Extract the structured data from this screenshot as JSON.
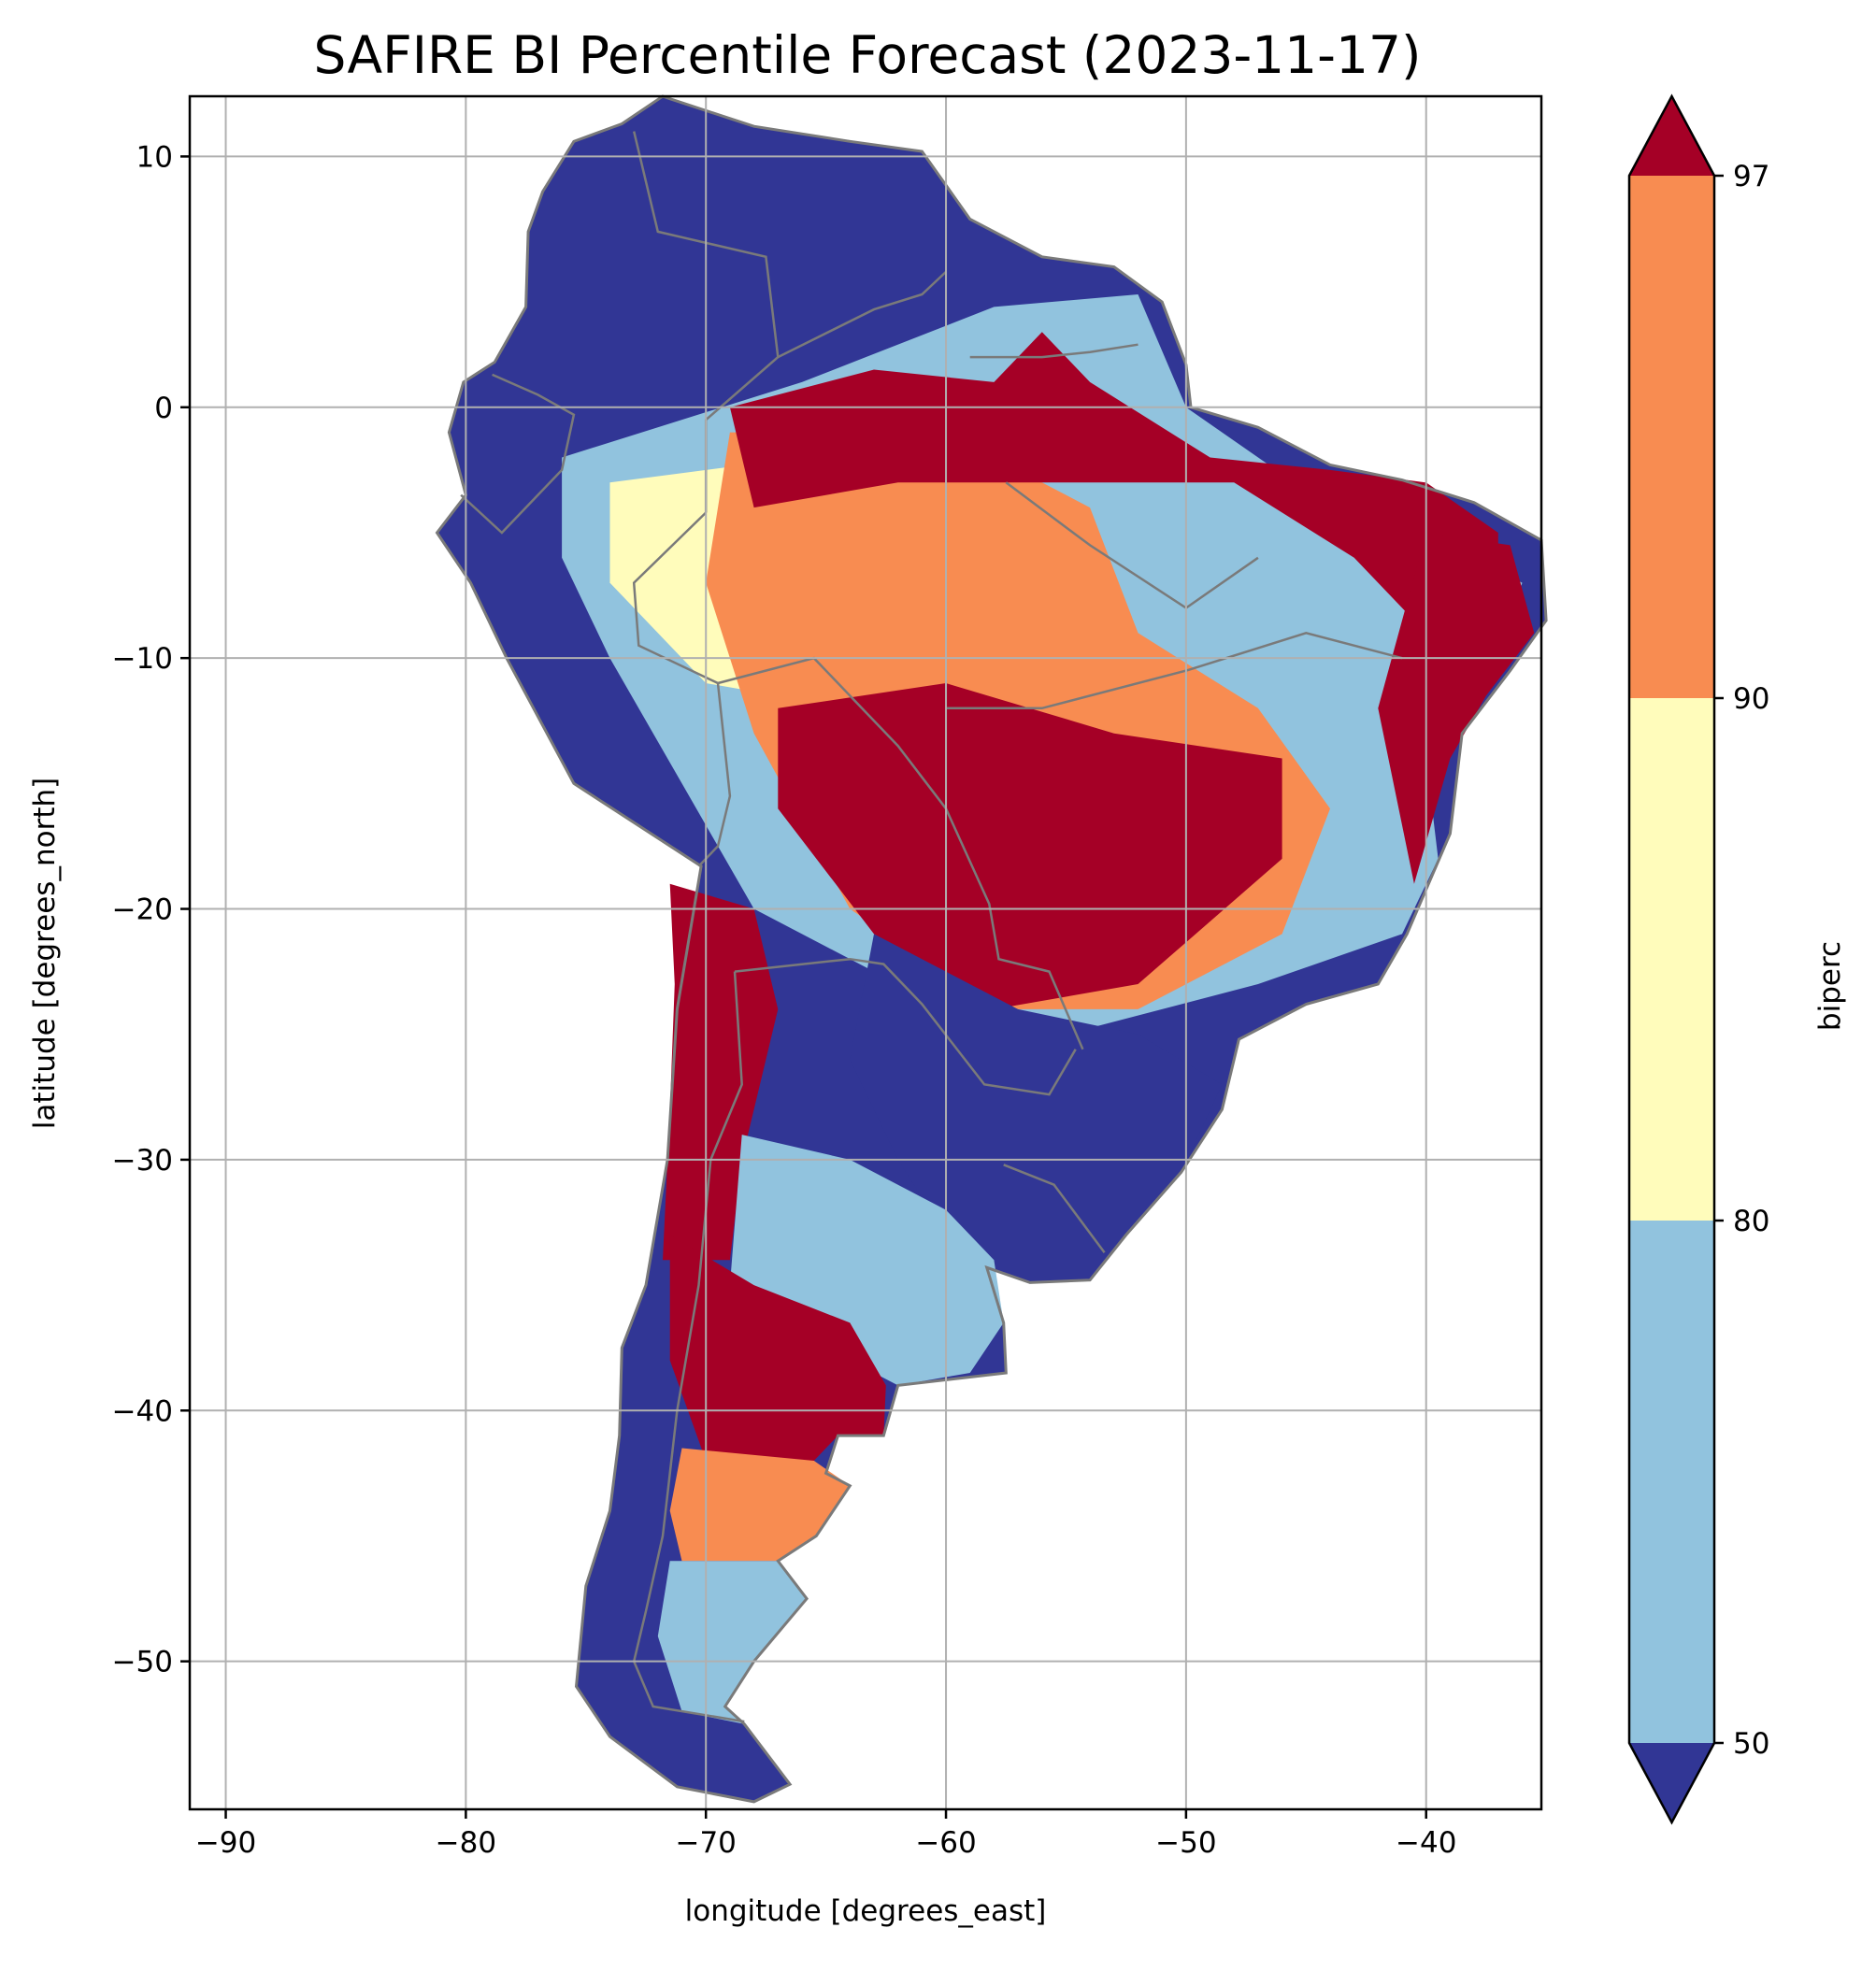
{
  "chart_data": {
    "type": "heatmap",
    "title": "SAFIRE BI Percentile Forecast (2023-11-17)",
    "xlabel": "longitude [degrees_east]",
    "ylabel": "latitude [degrees_north]",
    "xlim": [
      -91.5,
      -35.2
    ],
    "ylim": [
      -55.9,
      12.4
    ],
    "x_ticks": [
      -90,
      -80,
      -70,
      -60,
      -50,
      -40
    ],
    "y_ticks": [
      10,
      0,
      -10,
      -20,
      -30,
      -40,
      -50
    ],
    "x_tick_labels": [
      "−90",
      "−80",
      "−70",
      "−60",
      "−50",
      "−40"
    ],
    "y_tick_labels": [
      "10",
      "0",
      "−10",
      "−20",
      "−30",
      "−40",
      "−50"
    ],
    "grid": true,
    "region": "South America",
    "colorbar": {
      "label": "biperc",
      "levels": [
        50,
        80,
        90,
        97
      ],
      "tick_labels": [
        "50",
        "80",
        "90",
        "97"
      ],
      "extend": "both",
      "colors": {
        "under": "#313695",
        "50-80": "#91c3de",
        "80-90": "#fffcbb",
        "90-97": "#f88c51",
        "over": "#a50026"
      }
    },
    "regions": [
      {
        "area": "northwestern South America (Colombia, Venezuela, Ecuador, Peru)",
        "class": "under"
      },
      {
        "area": "central-western Amazon",
        "class": "50-80"
      },
      {
        "area": "northern Brazil / Guianas",
        "class": "over"
      },
      {
        "area": "central Brazil and Bolivia",
        "class": "over"
      },
      {
        "area": "southern Brazil, Uruguay, NE Argentina",
        "class": "under"
      },
      {
        "area": "central Argentina",
        "class": "over"
      },
      {
        "area": "Patagonia",
        "class": "50-80"
      },
      {
        "area": "southern Chile coast",
        "class": "under"
      }
    ],
    "border_color": "#7a7a7a",
    "grid_color": "#b0b0b0"
  }
}
